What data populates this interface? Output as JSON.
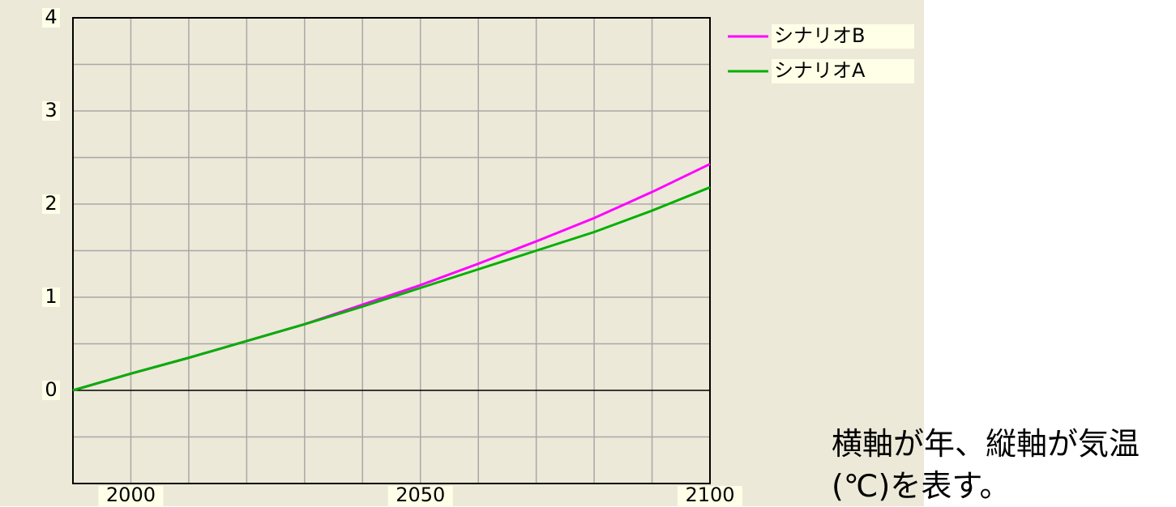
{
  "chart_data": {
    "type": "line",
    "x": [
      1990,
      2000,
      2010,
      2020,
      2030,
      2040,
      2050,
      2060,
      2070,
      2080,
      2090,
      2100
    ],
    "series": [
      {
        "name": "シナリオB",
        "color": "#ff00ff",
        "values": [
          0,
          0.18,
          0.35,
          0.53,
          0.71,
          0.92,
          1.13,
          1.36,
          1.6,
          1.85,
          2.13,
          2.43
        ]
      },
      {
        "name": "シナリオA",
        "color": "#00b000",
        "values": [
          0,
          0.18,
          0.35,
          0.53,
          0.71,
          0.9,
          1.1,
          1.3,
          1.5,
          1.7,
          1.93,
          2.18
        ]
      }
    ],
    "xlim": [
      1990,
      2100
    ],
    "xticks": [
      2000,
      2050,
      2100
    ],
    "xgrid": [
      2000,
      2010,
      2020,
      2030,
      2040,
      2050,
      2060,
      2070,
      2080,
      2090
    ],
    "ylim": [
      -1,
      4
    ],
    "yticks": [
      0,
      1,
      2,
      3,
      4
    ],
    "ygrid": [
      -0.5,
      0.5,
      1,
      1.5,
      2,
      2.5,
      3,
      3.5
    ],
    "grid": true,
    "legend": "right"
  },
  "caption": "横軸が年、縦軸が気温(℃)を表す。"
}
